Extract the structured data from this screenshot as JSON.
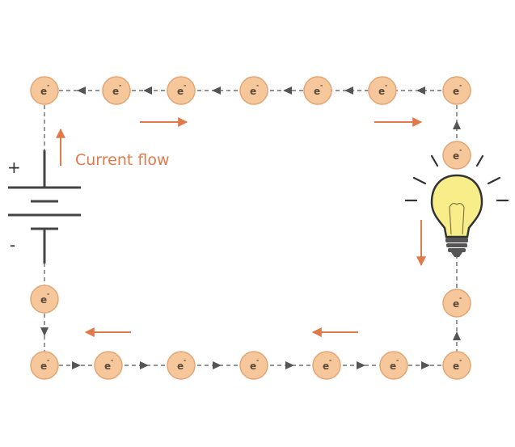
{
  "diagram": {
    "current_label": "Current flow",
    "battery": {
      "plus_label": "+",
      "minus_label": "-"
    },
    "electron": {
      "symbol": "e",
      "charge": "-"
    },
    "colors": {
      "electron_fill": "#f6c79a",
      "electron_stroke": "#e3a574",
      "current_arrow": "#e07a4a",
      "wire": "#555555",
      "bulb_glass": "#f7ee8a",
      "bulb_base": "#555555"
    },
    "icons": [
      "electron-icon",
      "battery-icon",
      "light-bulb-icon",
      "arrow-icon"
    ]
  }
}
